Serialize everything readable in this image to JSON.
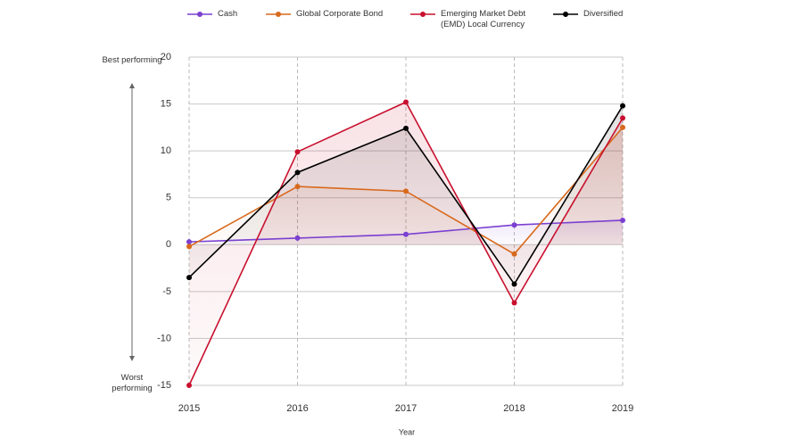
{
  "chart_data": {
    "type": "line",
    "categories": [
      "2015",
      "2016",
      "2017",
      "2018",
      "2019"
    ],
    "xlabel": "Year",
    "series": [
      {
        "name": "Cash",
        "color": "#7b3fd1",
        "values": [
          0.3,
          0.7,
          1.1,
          2.1,
          2.6
        ]
      },
      {
        "name": "Global Corporate Bond",
        "color": "#d8691c",
        "values": [
          -0.2,
          6.2,
          5.7,
          -1.0,
          12.5
        ]
      },
      {
        "name": "Emerging Market Debt (EMD) Local Currency",
        "color": "#c8102e",
        "values": [
          -15.0,
          9.9,
          15.2,
          -6.2,
          13.5
        ]
      },
      {
        "name": "Diversified",
        "color": "#000000",
        "values": [
          -3.5,
          7.7,
          12.4,
          -4.2,
          14.8
        ]
      }
    ],
    "ylim": [
      -15,
      20
    ],
    "yticks": [
      -15,
      -10,
      -5,
      0,
      5,
      10,
      15,
      20
    ],
    "grid": true,
    "annotations": [
      "Best performing",
      "Worst performing"
    ]
  }
}
